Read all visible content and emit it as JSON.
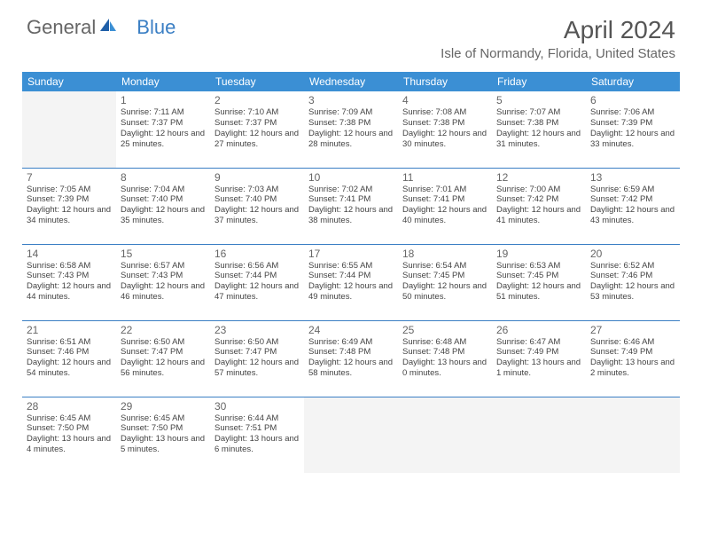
{
  "logo": {
    "text1": "General",
    "text2": "Blue"
  },
  "title": "April 2024",
  "location": "Isle of Normandy, Florida, United States",
  "header_bg": "#3b8fd4",
  "border_color": "#3b7fc4",
  "day_headers": [
    "Sunday",
    "Monday",
    "Tuesday",
    "Wednesday",
    "Thursday",
    "Friday",
    "Saturday"
  ],
  "weeks": [
    [
      null,
      {
        "n": "1",
        "sr": "7:11 AM",
        "ss": "7:37 PM",
        "dl": "12 hours and 25 minutes."
      },
      {
        "n": "2",
        "sr": "7:10 AM",
        "ss": "7:37 PM",
        "dl": "12 hours and 27 minutes."
      },
      {
        "n": "3",
        "sr": "7:09 AM",
        "ss": "7:38 PM",
        "dl": "12 hours and 28 minutes."
      },
      {
        "n": "4",
        "sr": "7:08 AM",
        "ss": "7:38 PM",
        "dl": "12 hours and 30 minutes."
      },
      {
        "n": "5",
        "sr": "7:07 AM",
        "ss": "7:38 PM",
        "dl": "12 hours and 31 minutes."
      },
      {
        "n": "6",
        "sr": "7:06 AM",
        "ss": "7:39 PM",
        "dl": "12 hours and 33 minutes."
      }
    ],
    [
      {
        "n": "7",
        "sr": "7:05 AM",
        "ss": "7:39 PM",
        "dl": "12 hours and 34 minutes."
      },
      {
        "n": "8",
        "sr": "7:04 AM",
        "ss": "7:40 PM",
        "dl": "12 hours and 35 minutes."
      },
      {
        "n": "9",
        "sr": "7:03 AM",
        "ss": "7:40 PM",
        "dl": "12 hours and 37 minutes."
      },
      {
        "n": "10",
        "sr": "7:02 AM",
        "ss": "7:41 PM",
        "dl": "12 hours and 38 minutes."
      },
      {
        "n": "11",
        "sr": "7:01 AM",
        "ss": "7:41 PM",
        "dl": "12 hours and 40 minutes."
      },
      {
        "n": "12",
        "sr": "7:00 AM",
        "ss": "7:42 PM",
        "dl": "12 hours and 41 minutes."
      },
      {
        "n": "13",
        "sr": "6:59 AM",
        "ss": "7:42 PM",
        "dl": "12 hours and 43 minutes."
      }
    ],
    [
      {
        "n": "14",
        "sr": "6:58 AM",
        "ss": "7:43 PM",
        "dl": "12 hours and 44 minutes."
      },
      {
        "n": "15",
        "sr": "6:57 AM",
        "ss": "7:43 PM",
        "dl": "12 hours and 46 minutes."
      },
      {
        "n": "16",
        "sr": "6:56 AM",
        "ss": "7:44 PM",
        "dl": "12 hours and 47 minutes."
      },
      {
        "n": "17",
        "sr": "6:55 AM",
        "ss": "7:44 PM",
        "dl": "12 hours and 49 minutes."
      },
      {
        "n": "18",
        "sr": "6:54 AM",
        "ss": "7:45 PM",
        "dl": "12 hours and 50 minutes."
      },
      {
        "n": "19",
        "sr": "6:53 AM",
        "ss": "7:45 PM",
        "dl": "12 hours and 51 minutes."
      },
      {
        "n": "20",
        "sr": "6:52 AM",
        "ss": "7:46 PM",
        "dl": "12 hours and 53 minutes."
      }
    ],
    [
      {
        "n": "21",
        "sr": "6:51 AM",
        "ss": "7:46 PM",
        "dl": "12 hours and 54 minutes."
      },
      {
        "n": "22",
        "sr": "6:50 AM",
        "ss": "7:47 PM",
        "dl": "12 hours and 56 minutes."
      },
      {
        "n": "23",
        "sr": "6:50 AM",
        "ss": "7:47 PM",
        "dl": "12 hours and 57 minutes."
      },
      {
        "n": "24",
        "sr": "6:49 AM",
        "ss": "7:48 PM",
        "dl": "12 hours and 58 minutes."
      },
      {
        "n": "25",
        "sr": "6:48 AM",
        "ss": "7:48 PM",
        "dl": "13 hours and 0 minutes."
      },
      {
        "n": "26",
        "sr": "6:47 AM",
        "ss": "7:49 PM",
        "dl": "13 hours and 1 minute."
      },
      {
        "n": "27",
        "sr": "6:46 AM",
        "ss": "7:49 PM",
        "dl": "13 hours and 2 minutes."
      }
    ],
    [
      {
        "n": "28",
        "sr": "6:45 AM",
        "ss": "7:50 PM",
        "dl": "13 hours and 4 minutes."
      },
      {
        "n": "29",
        "sr": "6:45 AM",
        "ss": "7:50 PM",
        "dl": "13 hours and 5 minutes."
      },
      {
        "n": "30",
        "sr": "6:44 AM",
        "ss": "7:51 PM",
        "dl": "13 hours and 6 minutes."
      },
      null,
      null,
      null,
      null
    ]
  ],
  "labels": {
    "sunrise": "Sunrise:",
    "sunset": "Sunset:",
    "daylight": "Daylight:"
  }
}
